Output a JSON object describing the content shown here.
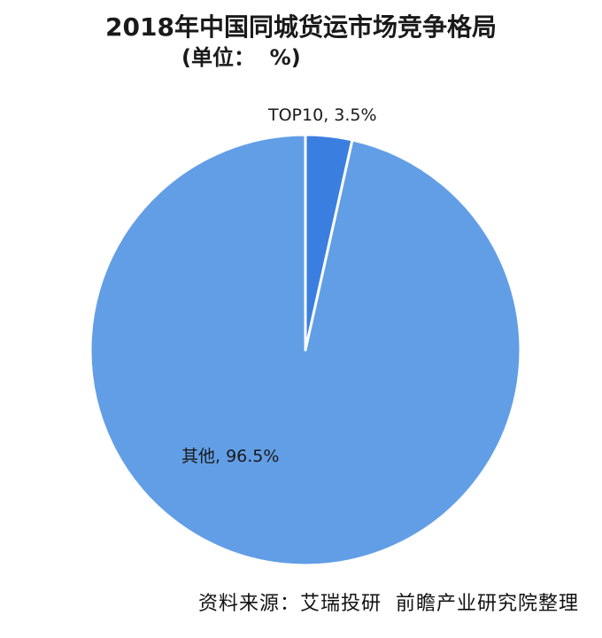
{
  "chart_data": {
    "type": "pie",
    "title": "2018年中国同城货运市场竞争格局",
    "unit_label": "(单位：  %)",
    "slices": [
      {
        "name": "TOP10",
        "value": 3.5,
        "label": "TOP10, 3.5%",
        "color": "#3a7fe0"
      },
      {
        "name": "其他",
        "value": 96.5,
        "label": "其他, 96.5%",
        "color": "#629ee6"
      }
    ],
    "start_angle_deg": 0,
    "direction": "clockwise",
    "legend": "none"
  },
  "source_text": "资料来源：艾瑞投研  前瞻产业研究院整理"
}
